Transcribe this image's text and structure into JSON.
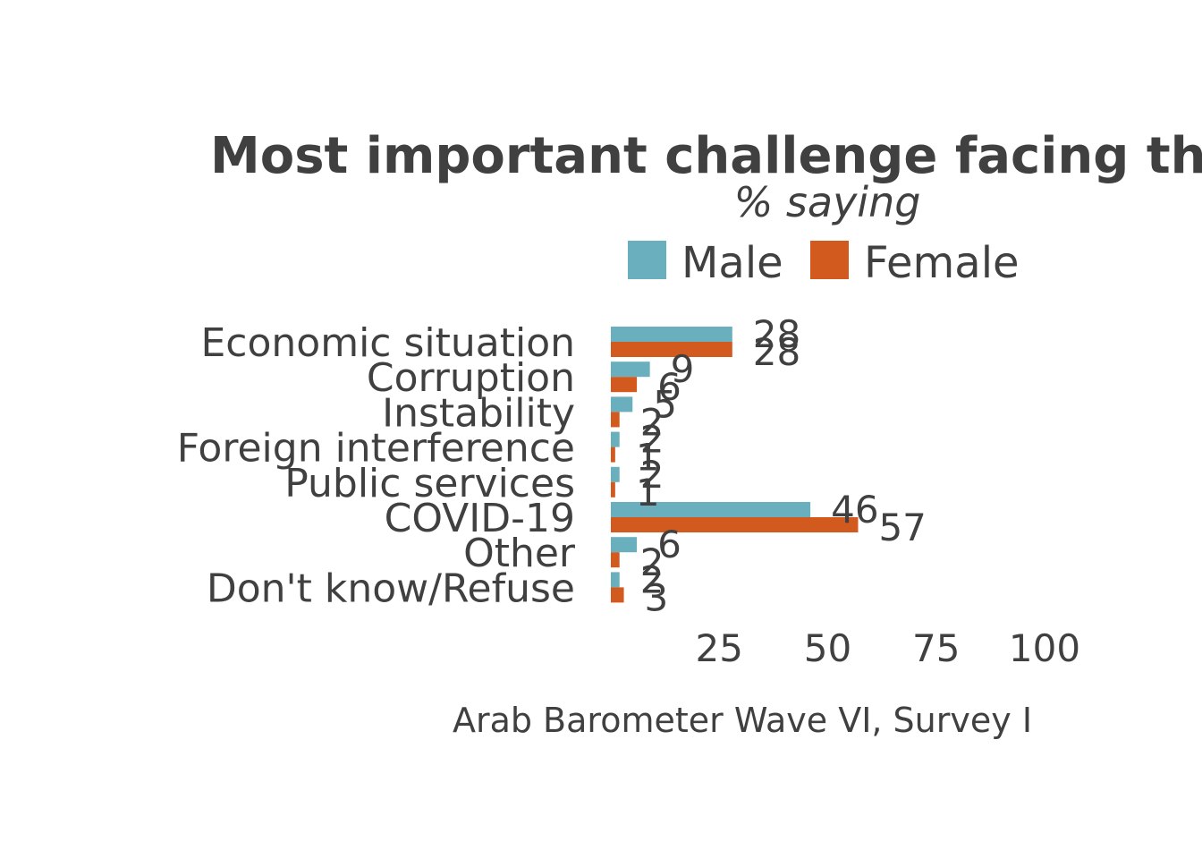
{
  "chart_data": {
    "type": "bar",
    "orientation": "horizontal",
    "title": "Most important challenge facing the",
    "subtitle": "% saying",
    "caption": "Arab Barometer Wave VI, Survey I",
    "categories": [
      "Economic situation",
      "Corruption",
      "Instability",
      "Foreign interference",
      "Public services",
      "COVID-19",
      "Other",
      "Don't know/Refuse"
    ],
    "series": [
      {
        "name": "Male",
        "color": "#6aafbd",
        "values": [
          28,
          9,
          5,
          2,
          2,
          46,
          6,
          2
        ]
      },
      {
        "name": "Female",
        "color": "#d35a1e",
        "values": [
          28,
          6,
          2,
          1,
          1,
          57,
          2,
          3
        ]
      }
    ],
    "x_ticks": [
      25,
      50,
      75,
      100
    ],
    "xlim": [
      0,
      100
    ],
    "legend_position": "top",
    "grid": false
  }
}
